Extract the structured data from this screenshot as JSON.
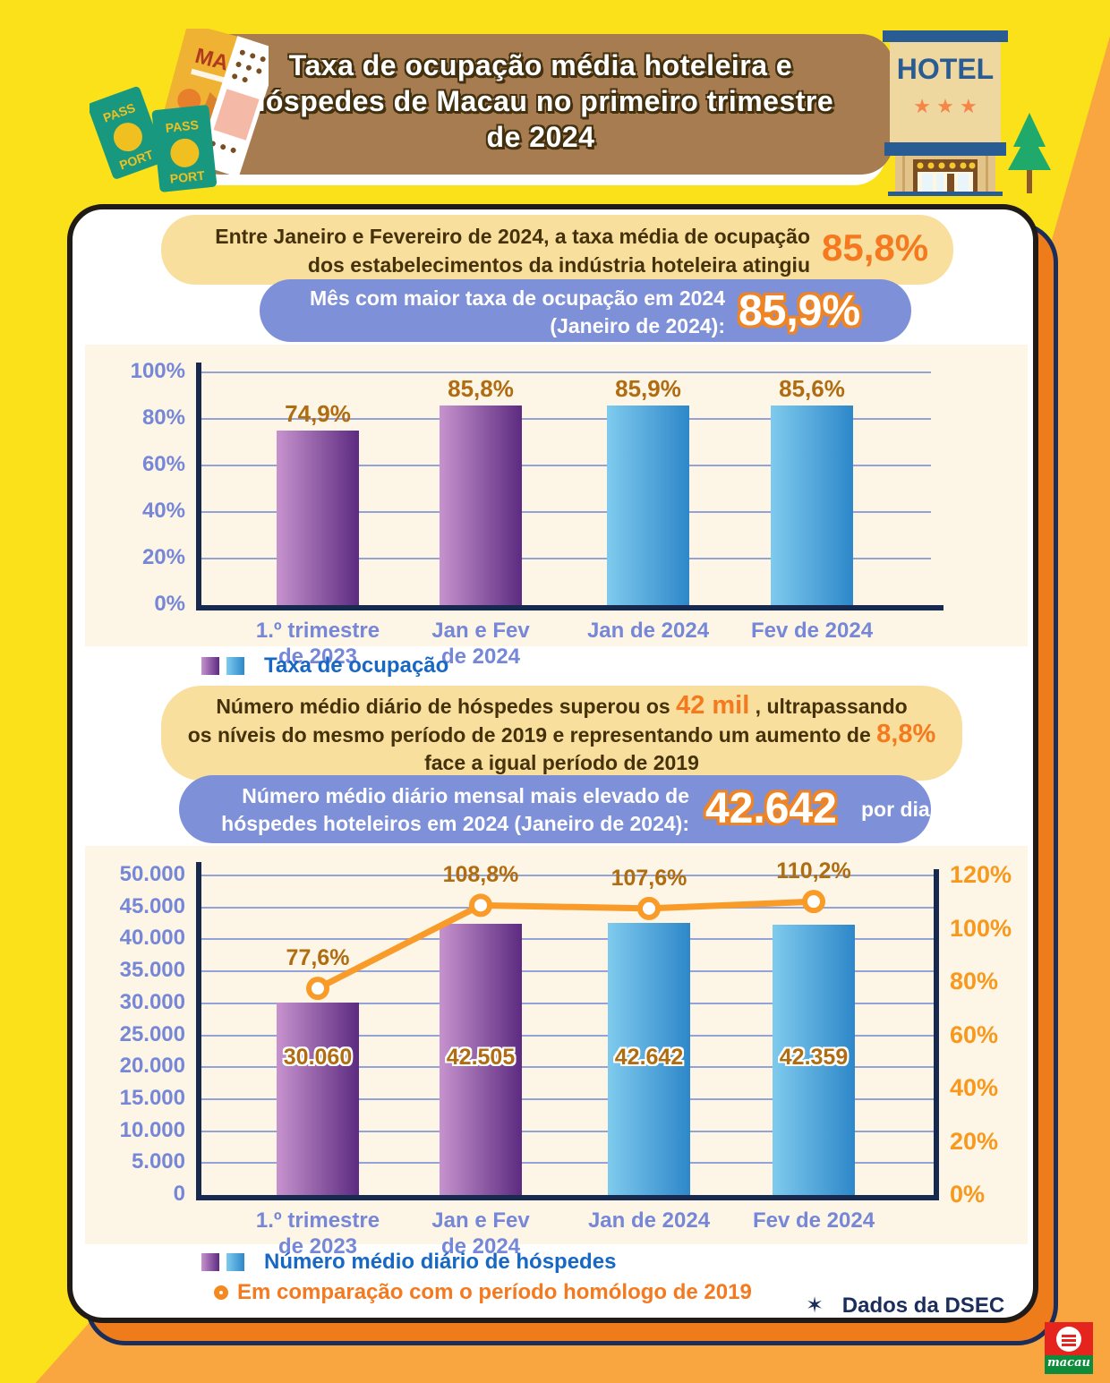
{
  "colors": {
    "yellow": "#FBE11A",
    "orange_light": "#FAA640",
    "orange_card": "#EE7C1A",
    "navy": "#1B2D5B",
    "card_border": "#201B17",
    "banner_brown": "#A67C50",
    "cream": "#F9DF9D",
    "periwinkle": "#7E90D8",
    "panel_cream": "#FDF5E6",
    "accent_orange": "#F4791F",
    "callout_text_brown": "#45310A",
    "blue_text": "#1668C4",
    "tick": "#7587D6",
    "grid": "#93A3D6",
    "axis": "#17294E",
    "value_label": "#B06C10",
    "right_axis_orange": "#F8991D",
    "purple_light": "#C793CE",
    "purple_dark": "#5C2B80",
    "blue_light": "#7FCBEE",
    "blue_dark": "#2D87C9",
    "line_orange": "#F89B28"
  },
  "header": {
    "title_lines": [
      "Taxa de ocupação média hoteleira e",
      "hóspedes de Macau no primeiro trimestre",
      "de 2024"
    ],
    "hotel_icon": {
      "sign": "HOTEL",
      "stars": "★ ★ ★"
    },
    "passport_icon": {
      "top": "PASS",
      "bottom": "PORT"
    },
    "map_icon": {
      "label": "MAP"
    }
  },
  "callout_occupancy_summary": {
    "line1": "Entre Janeiro e Fevereiro de 2024, a taxa média de ocupação",
    "line2": "dos estabelecimentos da indústria hoteleira atingiu",
    "value": "85,8%"
  },
  "callout_occupancy_peak": {
    "line1": "Mês com maior taxa de ocupação em 2024",
    "line2": "(Janeiro de 2024):",
    "value": "85,9%"
  },
  "callout_guests_summary": {
    "l1a": "Número médio diário de hóspedes superou os ",
    "l1b": "42 mil",
    "l1c": " , ultrapassando",
    "l2a": "os níveis do mesmo período de 2019 e representando um aumento de ",
    "l2b": "8,8%",
    "l3": "face a igual período de 2019"
  },
  "callout_guests_peak": {
    "line1": "Número médio diário mensal mais elevado de",
    "line2": "hóspedes hoteleiros em 2024 (Janeiro de 2024):",
    "value": "42.642",
    "suffix": "por dia"
  },
  "footer": {
    "star": "✶",
    "source": "Dados da DSEC",
    "logo_text": "macau"
  },
  "chart_data": [
    {
      "type": "bar",
      "title": "Taxa de ocupação",
      "categories": [
        [
          "1.º trimestre",
          "de 2023"
        ],
        [
          "Jan e Fev",
          "de 2024"
        ],
        [
          "Jan de 2024"
        ],
        [
          "Fev de 2024"
        ]
      ],
      "values": [
        74.9,
        85.8,
        85.9,
        85.6
      ],
      "value_labels": [
        "74,9%",
        "85,8%",
        "85,9%",
        "85,6%"
      ],
      "bar_palette": [
        "purple",
        "purple",
        "blue",
        "blue"
      ],
      "ylim": [
        0,
        100
      ],
      "ytick_labels": [
        "0%",
        "20%",
        "40%",
        "60%",
        "80%",
        "100%"
      ],
      "grid": true,
      "legend": [
        "Taxa de ocupação"
      ],
      "legend_position": "bottom-left"
    },
    {
      "type": "bar+line",
      "title": "Número médio diário de hóspedes",
      "categories": [
        [
          "1.º trimestre",
          "de 2023"
        ],
        [
          "Jan e Fev",
          "de 2024"
        ],
        [
          "Jan de 2024"
        ],
        [
          "Fev de 2024"
        ]
      ],
      "series": [
        {
          "name": "Número médio diário de hóspedes",
          "type": "bar",
          "axis": "left",
          "values": [
            30060,
            42505,
            42642,
            42359
          ],
          "labels": [
            "30.060",
            "42.505",
            "42.642",
            "42.359"
          ],
          "palette": [
            "purple",
            "purple",
            "blue",
            "blue"
          ]
        },
        {
          "name": "Em comparação com o período homólogo de 2019",
          "type": "line",
          "axis": "right",
          "values": [
            77.6,
            108.8,
            107.6,
            110.2
          ],
          "labels": [
            "77,6%",
            "108,8%",
            "107,6%",
            "110,2%"
          ]
        }
      ],
      "ylim_left": [
        0,
        50000
      ],
      "ytick_labels_left": [
        "0",
        "5.000",
        "10.000",
        "15.000",
        "20.000",
        "25.000",
        "30.000",
        "35.000",
        "40.000",
        "45.000",
        "50.000"
      ],
      "ylim_right": [
        0,
        120
      ],
      "ytick_labels_right": [
        "0%",
        "20%",
        "40%",
        "60%",
        "80%",
        "100%",
        "120%"
      ],
      "grid": true,
      "legend_position": "bottom-left"
    }
  ]
}
